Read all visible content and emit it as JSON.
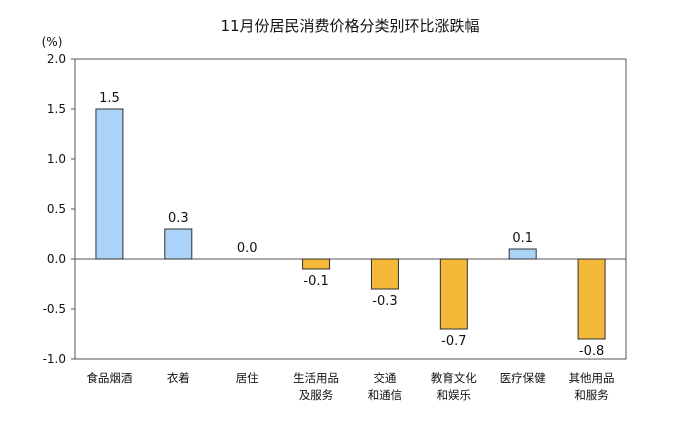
{
  "chart_data": {
    "type": "bar",
    "title": "11月份居民消费价格分类别环比涨跌幅",
    "unit_label": "(%)",
    "categories": [
      [
        "食品烟酒"
      ],
      [
        "衣着"
      ],
      [
        "居住"
      ],
      [
        "生活用品",
        "及服务"
      ],
      [
        "交通",
        "和通信"
      ],
      [
        "教育文化",
        "和娱乐"
      ],
      [
        "医疗保健"
      ],
      [
        "其他用品",
        "和服务"
      ]
    ],
    "values": [
      1.5,
      0.3,
      0.0,
      -0.1,
      -0.3,
      -0.7,
      0.1,
      -0.8
    ],
    "value_labels": [
      "1.5",
      "0.3",
      "0.0",
      "-0.1",
      "-0.3",
      "-0.7",
      "0.1",
      "-0.8"
    ],
    "ylim": [
      -1.0,
      2.0
    ],
    "yticks": [
      "2.0",
      "1.5",
      "1.0",
      "0.5",
      "0.0",
      "-0.5",
      "-1.0"
    ],
    "grid": false,
    "colors": {
      "positive_fill": "#a9d3f7",
      "positive_stroke": "#2f2f2f",
      "negative_fill": "#f5b93a",
      "negative_stroke": "#2f2f2f",
      "axis": "#555555"
    }
  }
}
